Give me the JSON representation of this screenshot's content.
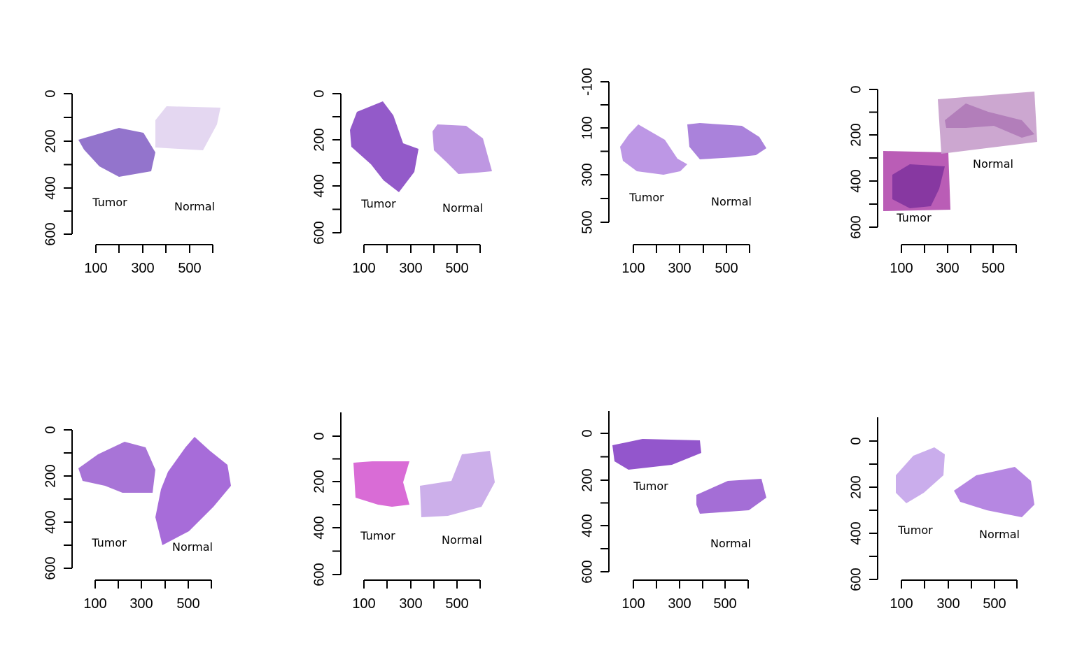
{
  "colors": {
    "axis": "#000000",
    "background": "#ffffff"
  },
  "panels": [
    {
      "id": "p1",
      "x_ticks": [
        "100",
        "300",
        "500"
      ],
      "y_ticks": [
        "0",
        "200",
        "400",
        "600"
      ],
      "tumor_label": "Tumor",
      "normal_label": "Normal",
      "tumor_color": "#8a68c8",
      "normal_color": "#e2d4f0"
    },
    {
      "id": "p2",
      "x_ticks": [
        "100",
        "300",
        "500"
      ],
      "y_ticks": [
        "0",
        "200",
        "400",
        "600"
      ],
      "tumor_label": "Tumor",
      "normal_label": "Normal",
      "tumor_color": "#8a4cc4",
      "normal_color": "#b98ee0"
    },
    {
      "id": "p3",
      "x_ticks": [
        "100",
        "300",
        "500"
      ],
      "y_ticks": [
        "-100",
        "100",
        "300",
        "500"
      ],
      "tumor_label": "Tumor",
      "normal_label": "Normal",
      "tumor_color": "#b78ee3",
      "normal_color": "#a377d8"
    },
    {
      "id": "p4",
      "x_ticks": [
        "100",
        "300",
        "500"
      ],
      "y_ticks": [
        "0",
        "200",
        "400",
        "600"
      ],
      "tumor_label": "Tumor",
      "normal_label": "Normal",
      "tumor_color": "#b44fb0",
      "normal_color": "#c8a0cc"
    },
    {
      "id": "p5",
      "x_ticks": [
        "100",
        "300",
        "500"
      ],
      "y_ticks": [
        "0",
        "200",
        "400",
        "600"
      ],
      "tumor_label": "Tumor",
      "normal_label": "Normal",
      "tumor_color": "#a168d4",
      "normal_color": "#9f5fd6"
    },
    {
      "id": "p6",
      "x_ticks": [
        "100",
        "300",
        "500"
      ],
      "y_ticks": [
        "0",
        "200",
        "400",
        "600"
      ],
      "tumor_label": "Tumor",
      "normal_label": "Normal",
      "tumor_color": "#d65fd2",
      "normal_color": "#c8a8e8"
    },
    {
      "id": "p7",
      "x_ticks": [
        "100",
        "300",
        "500"
      ],
      "y_ticks": [
        "0",
        "200",
        "400",
        "600"
      ],
      "tumor_label": "Tumor",
      "normal_label": "Normal",
      "tumor_color": "#8a48c8",
      "normal_color": "#9c62d2"
    },
    {
      "id": "p8",
      "x_ticks": [
        "100",
        "300",
        "500"
      ],
      "y_ticks": [
        "0",
        "200",
        "400",
        "600"
      ],
      "tumor_label": "Tumor",
      "normal_label": "Normal",
      "tumor_color": "#c5a6ea",
      "normal_color": "#b07de0"
    }
  ]
}
